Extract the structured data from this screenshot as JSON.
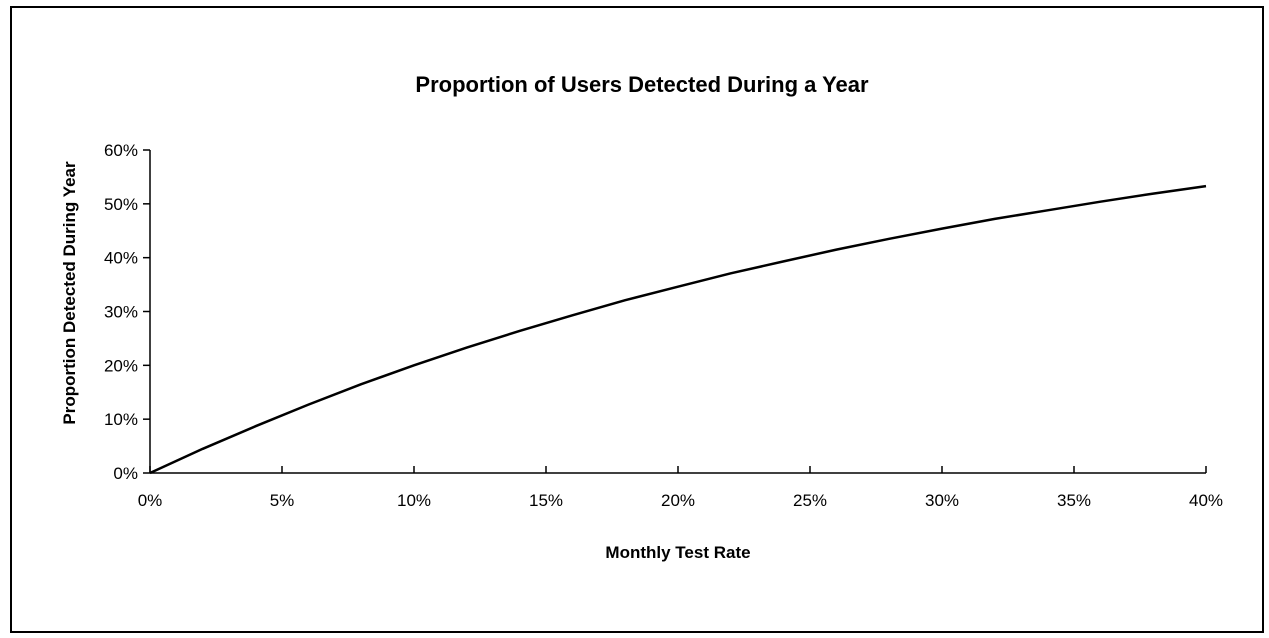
{
  "chart_data": {
    "type": "line",
    "title": "Proportion of Users Detected During a Year",
    "xlabel": "Monthly Test Rate",
    "ylabel": "Proportion Detected During Year",
    "xlim": [
      0,
      0.4
    ],
    "ylim": [
      0,
      0.6
    ],
    "x_ticks": [
      {
        "value": 0,
        "label": "0%"
      },
      {
        "value": 0.05,
        "label": "5%"
      },
      {
        "value": 0.1,
        "label": "10%"
      },
      {
        "value": 0.15,
        "label": "15%"
      },
      {
        "value": 0.2,
        "label": "20%"
      },
      {
        "value": 0.25,
        "label": "25%"
      },
      {
        "value": 0.3,
        "label": "30%"
      },
      {
        "value": 0.35,
        "label": "35%"
      },
      {
        "value": 0.4,
        "label": "40%"
      }
    ],
    "y_ticks": [
      {
        "value": 0,
        "label": "0%"
      },
      {
        "value": 0.1,
        "label": "10%"
      },
      {
        "value": 0.2,
        "label": "20%"
      },
      {
        "value": 0.3,
        "label": "30%"
      },
      {
        "value": 0.4,
        "label": "40%"
      },
      {
        "value": 0.5,
        "label": "50%"
      },
      {
        "value": 0.6,
        "label": "60%"
      }
    ],
    "grid": false,
    "legend": "none",
    "series": [
      {
        "x": [
          0,
          0.02,
          0.04,
          0.06,
          0.08,
          0.1,
          0.12,
          0.14,
          0.16,
          0.18,
          0.2,
          0.22,
          0.24,
          0.26,
          0.28,
          0.3,
          0.32,
          0.34,
          0.36,
          0.38,
          0.4
        ],
        "y": [
          0,
          0.045,
          0.087,
          0.127,
          0.165,
          0.2,
          0.233,
          0.264,
          0.293,
          0.321,
          0.346,
          0.371,
          0.393,
          0.415,
          0.435,
          0.454,
          0.472,
          0.488,
          0.504,
          0.519,
          0.533
        ]
      }
    ],
    "line_color": "#000000"
  }
}
